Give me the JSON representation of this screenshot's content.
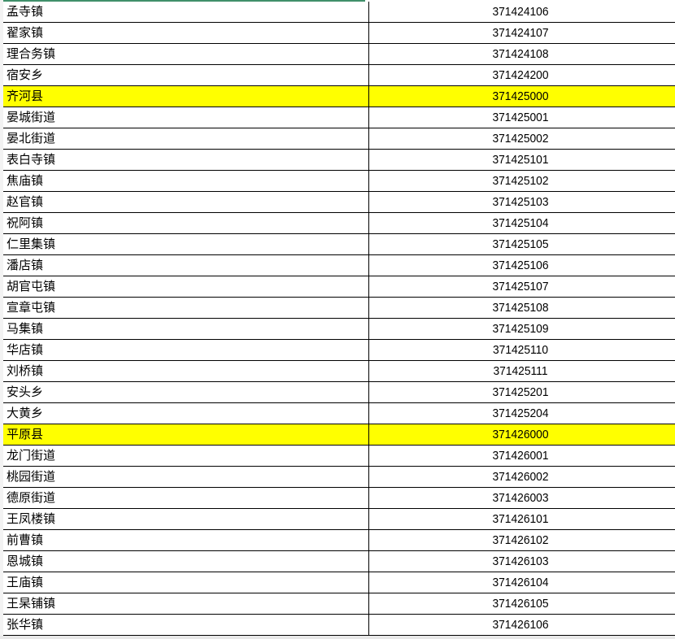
{
  "highlight_color": "#ffff00",
  "rows": [
    {
      "name": "孟寺镇",
      "code": "371424106",
      "highlight": false
    },
    {
      "name": "翟家镇",
      "code": "371424107",
      "highlight": false
    },
    {
      "name": "理合务镇",
      "code": "371424108",
      "highlight": false
    },
    {
      "name": "宿安乡",
      "code": "371424200",
      "highlight": false
    },
    {
      "name": "齐河县",
      "code": "371425000",
      "highlight": true
    },
    {
      "name": "晏城街道",
      "code": "371425001",
      "highlight": false
    },
    {
      "name": "晏北街道",
      "code": "371425002",
      "highlight": false
    },
    {
      "name": "表白寺镇",
      "code": "371425101",
      "highlight": false
    },
    {
      "name": "焦庙镇",
      "code": "371425102",
      "highlight": false
    },
    {
      "name": "赵官镇",
      "code": "371425103",
      "highlight": false
    },
    {
      "name": "祝阿镇",
      "code": "371425104",
      "highlight": false
    },
    {
      "name": "仁里集镇",
      "code": "371425105",
      "highlight": false
    },
    {
      "name": "潘店镇",
      "code": "371425106",
      "highlight": false
    },
    {
      "name": "胡官屯镇",
      "code": "371425107",
      "highlight": false
    },
    {
      "name": "宣章屯镇",
      "code": "371425108",
      "highlight": false
    },
    {
      "name": "马集镇",
      "code": "371425109",
      "highlight": false
    },
    {
      "name": "华店镇",
      "code": "371425110",
      "highlight": false
    },
    {
      "name": "刘桥镇",
      "code": "371425111",
      "highlight": false
    },
    {
      "name": "安头乡",
      "code": "371425201",
      "highlight": false
    },
    {
      "name": "大黄乡",
      "code": "371425204",
      "highlight": false
    },
    {
      "name": "平原县",
      "code": "371426000",
      "highlight": true
    },
    {
      "name": "龙门街道",
      "code": "371426001",
      "highlight": false
    },
    {
      "name": "桃园街道",
      "code": "371426002",
      "highlight": false
    },
    {
      "name": "德原街道",
      "code": "371426003",
      "highlight": false
    },
    {
      "name": "王凤楼镇",
      "code": "371426101",
      "highlight": false
    },
    {
      "name": "前曹镇",
      "code": "371426102",
      "highlight": false
    },
    {
      "name": "恩城镇",
      "code": "371426103",
      "highlight": false
    },
    {
      "name": "王庙镇",
      "code": "371426104",
      "highlight": false
    },
    {
      "name": "王杲铺镇",
      "code": "371426105",
      "highlight": false
    },
    {
      "name": "张华镇",
      "code": "371426106",
      "highlight": false
    }
  ]
}
